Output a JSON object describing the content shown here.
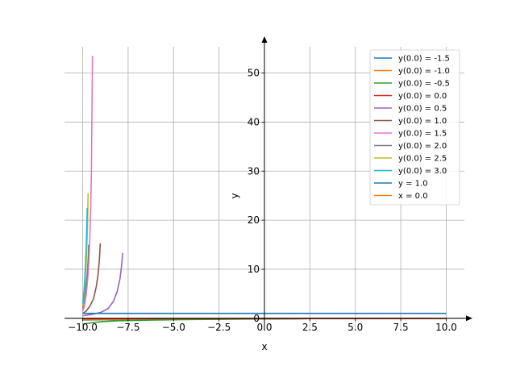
{
  "chart_data": {
    "type": "line",
    "title": "",
    "xlabel": "x",
    "ylabel": "y",
    "xlim": [
      -11,
      11
    ],
    "ylim": [
      -2.5,
      57
    ],
    "grid": true,
    "legend_position": "top-right",
    "x_ticks": [
      {
        "value": -10,
        "label": "−10.0"
      },
      {
        "value": -7.5,
        "label": "−7.5"
      },
      {
        "value": -5,
        "label": "−5.0"
      },
      {
        "value": -2.5,
        "label": "−2.5"
      },
      {
        "value": 0,
        "label": "0.0"
      },
      {
        "value": 2.5,
        "label": "2.5"
      },
      {
        "value": 5,
        "label": "5.0"
      },
      {
        "value": 7.5,
        "label": "7.5"
      },
      {
        "value": 10,
        "label": "10.0"
      }
    ],
    "y_ticks": [
      {
        "value": 0,
        "label": "0"
      },
      {
        "value": 10,
        "label": "10"
      },
      {
        "value": 20,
        "label": "20"
      },
      {
        "value": 30,
        "label": "30"
      },
      {
        "value": 40,
        "label": "40"
      },
      {
        "value": 50,
        "label": "50"
      }
    ],
    "series": [
      {
        "name": "y(0.0) = -1.5",
        "color": "#1f77b4",
        "x": [
          -10,
          -9,
          -8,
          -6,
          -4,
          -2,
          0,
          2,
          4,
          6,
          8,
          10
        ],
        "y": [
          -0.35,
          -0.32,
          -0.3,
          -0.25,
          -0.2,
          -0.15,
          -0.1,
          -0.08,
          -0.06,
          -0.04,
          -0.02,
          -0.01
        ]
      },
      {
        "name": "y(0.0) = -1.0",
        "color": "#ff7f0e",
        "x": [
          -10,
          -9,
          -8,
          -6,
          -4,
          -2,
          0,
          2,
          4,
          6,
          8,
          10
        ],
        "y": [
          -0.3,
          -0.28,
          -0.25,
          -0.2,
          -0.15,
          -0.1,
          -0.08,
          -0.06,
          -0.04,
          -0.03,
          -0.02,
          -0.01
        ]
      },
      {
        "name": "y(0.0) = -0.5",
        "color": "#2ca02c",
        "x": [
          -10,
          -9.5,
          -9,
          -8,
          -6,
          -4,
          -2,
          0,
          2,
          4,
          6,
          8,
          10
        ],
        "y": [
          -1.2,
          -0.9,
          -0.7,
          -0.5,
          -0.35,
          -0.25,
          -0.18,
          -0.12,
          -0.08,
          -0.05,
          -0.03,
          -0.02,
          -0.01
        ]
      },
      {
        "name": "y(0.0) = 0.0",
        "color": "#d62728",
        "x": [
          -10,
          -8,
          -6,
          -4,
          -2,
          0,
          2,
          4,
          6,
          8,
          10
        ],
        "y": [
          -0.1,
          -0.08,
          -0.06,
          -0.05,
          -0.04,
          -0.03,
          -0.02,
          -0.02,
          -0.01,
          -0.01,
          -0.01
        ]
      },
      {
        "name": "y(0.0) = 0.5",
        "color": "#9467bd",
        "x": [
          -10,
          -9.5,
          -9,
          -8.6,
          -8.3,
          -8.1,
          -7.95,
          -7.85,
          -7.8
        ],
        "y": [
          0.5,
          0.8,
          1.2,
          2.0,
          3.5,
          5.5,
          8.0,
          11.0,
          13.3
        ]
      },
      {
        "name": "y(0.0) = 1.0",
        "color": "#8c564b",
        "x": [
          -10,
          -9.8,
          -9.6,
          -9.4,
          -9.25,
          -9.15,
          -9.08,
          -9.03
        ],
        "y": [
          1.0,
          1.5,
          2.5,
          4.0,
          6.5,
          9.0,
          12.0,
          15.3
        ]
      },
      {
        "name": "y(0.0) = 1.5",
        "color": "#e377c2",
        "x": [
          -10,
          -9.9,
          -9.8,
          -9.7,
          -9.62,
          -9.56,
          -9.52,
          -9.5,
          -9.48,
          -9.46
        ],
        "y": [
          1.5,
          2.5,
          5.0,
          9.0,
          15.0,
          22.0,
          30.0,
          38.0,
          46.0,
          53.5
        ]
      },
      {
        "name": "y(0.0) = 2.0",
        "color": "#7f7f7f",
        "x": [
          -10,
          -9.95,
          -9.85,
          -9.75,
          -9.7,
          -9.67
        ],
        "y": [
          2.0,
          3.0,
          5.5,
          9.0,
          12.0,
          15.0
        ]
      },
      {
        "name": "y(0.0) = 2.5",
        "color": "#bcbd22",
        "x": [
          -10,
          -9.95,
          -9.88,
          -9.8,
          -9.75,
          -9.72,
          -9.7
        ],
        "y": [
          2.5,
          4.0,
          7.0,
          12.0,
          17.0,
          21.5,
          25.5
        ]
      },
      {
        "name": "y(0.0) = 3.0",
        "color": "#17becf",
        "x": [
          -10,
          -9.95,
          -9.9,
          -9.85,
          -9.8,
          -9.77,
          -9.75
        ],
        "y": [
          3.0,
          4.5,
          7.0,
          10.5,
          15.0,
          19.0,
          22.5
        ]
      },
      {
        "name": "y = 1.0",
        "color": "#1f77b4",
        "x": [
          -10,
          10
        ],
        "y": [
          1.0,
          1.0
        ]
      },
      {
        "name": "x = 0.0",
        "color": "#ff7f0e",
        "x": [
          0,
          0
        ],
        "y": [
          0,
          0
        ]
      }
    ]
  }
}
